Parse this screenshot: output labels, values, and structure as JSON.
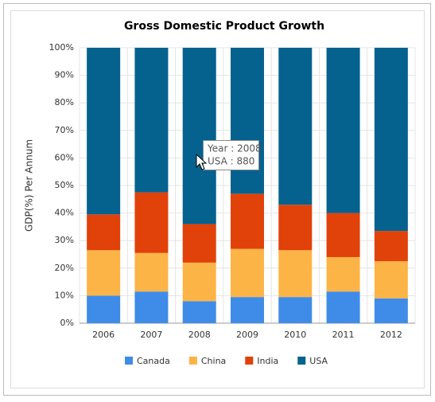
{
  "chart_data": {
    "type": "stacked_column_percent",
    "title": "Gross Domestic Product Growth",
    "y_label": "GDP(%) Per Annum",
    "categories": [
      "2006",
      "2007",
      "2008",
      "2009",
      "2010",
      "2011",
      "2012"
    ],
    "series": [
      {
        "name": "Canada",
        "color": "#3f8ce8",
        "values": [
          10,
          11.5,
          8,
          9.5,
          9.5,
          11.5,
          9
        ]
      },
      {
        "name": "China",
        "color": "#fdb446",
        "values": [
          16.5,
          14,
          14,
          17.5,
          17,
          12.5,
          13.5
        ]
      },
      {
        "name": "India",
        "color": "#e0420a",
        "values": [
          13,
          22,
          14,
          20,
          16.5,
          16,
          11
        ]
      },
      {
        "name": "USA",
        "color": "#05628f",
        "values": [
          60.5,
          52.5,
          64,
          53,
          57,
          60,
          66.5
        ]
      }
    ],
    "ylim": [
      0,
      100
    ],
    "yticks": [
      {
        "value": 0,
        "label": "0%"
      },
      {
        "value": 10,
        "label": "10%"
      },
      {
        "value": 20,
        "label": "20%"
      },
      {
        "value": 30,
        "label": "30%"
      },
      {
        "value": 40,
        "label": "40%"
      },
      {
        "value": 50,
        "label": "50%"
      },
      {
        "value": 60,
        "label": "60%"
      },
      {
        "value": 70,
        "label": "70%"
      },
      {
        "value": 80,
        "label": "80%"
      },
      {
        "value": 90,
        "label": "90%"
      },
      {
        "value": 100,
        "label": "100%"
      }
    ],
    "grid": true,
    "legend": "bottom",
    "tooltip": [
      "Year : 2008",
      "USA : 880"
    ]
  }
}
